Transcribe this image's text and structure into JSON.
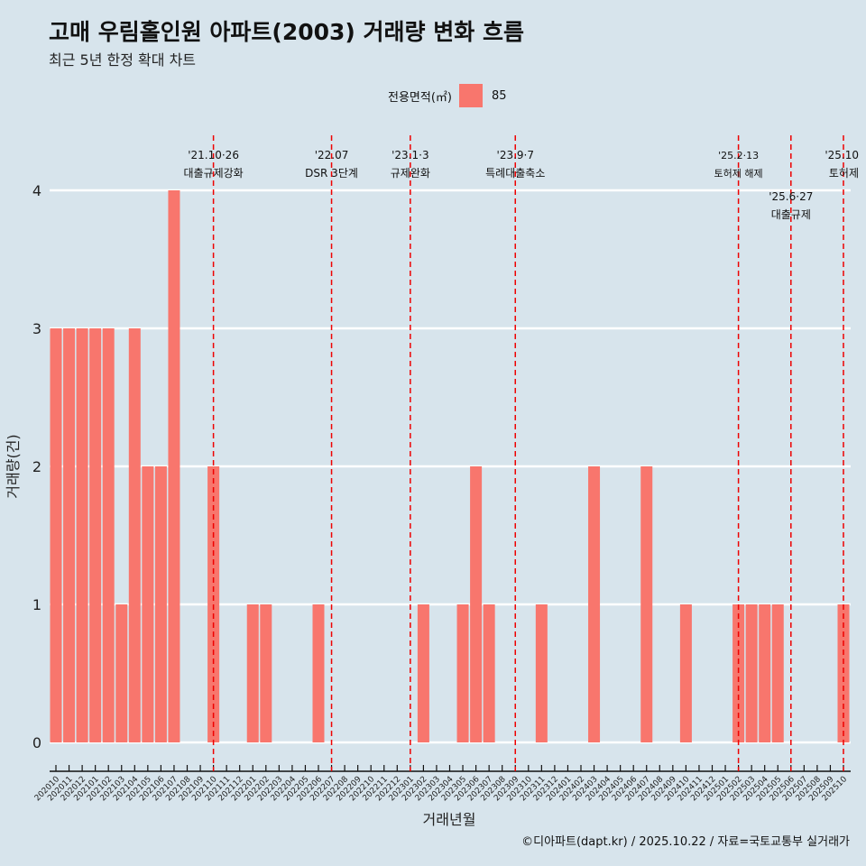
{
  "title": "고매 우림홀인원 아파트(2003) 거래량 변화 흐름",
  "subtitle": "최근 5년 한정 확대 차트",
  "legend": {
    "title": "전용면적(㎡)",
    "items": [
      {
        "label": "85",
        "color": "#F8766D"
      }
    ]
  },
  "caption": "©디아파트(dapt.kr) / 2025.10.22 / 자료=국토교통부 실거래가",
  "chart_data": {
    "type": "bar",
    "xlabel": "거래년월",
    "ylabel": "거래량(건)",
    "ylim": [
      0,
      4
    ],
    "yticks": [
      0,
      1,
      2,
      3,
      4
    ],
    "categories": [
      "202010",
      "202011",
      "202012",
      "202101",
      "202102",
      "202103",
      "202104",
      "202105",
      "202106",
      "202107",
      "202108",
      "202109",
      "202110",
      "202111",
      "202112",
      "202201",
      "202202",
      "202203",
      "202204",
      "202205",
      "202206",
      "202207",
      "202208",
      "202209",
      "202210",
      "202211",
      "202212",
      "202301",
      "202302",
      "202303",
      "202304",
      "202305",
      "202306",
      "202307",
      "202308",
      "202309",
      "202310",
      "202311",
      "202312",
      "202401",
      "202402",
      "202403",
      "202404",
      "202405",
      "202406",
      "202407",
      "202408",
      "202409",
      "202410",
      "202411",
      "202412",
      "202501",
      "202502",
      "202503",
      "202504",
      "202505",
      "202506",
      "202507",
      "202508",
      "202509",
      "202510"
    ],
    "series": [
      {
        "name": "85",
        "color": "#F8766D",
        "values": [
          3,
          3,
          3,
          3,
          3,
          1,
          3,
          2,
          2,
          4,
          0,
          0,
          2,
          0,
          0,
          1,
          1,
          0,
          0,
          0,
          1,
          0,
          0,
          0,
          0,
          0,
          0,
          0,
          1,
          0,
          0,
          1,
          2,
          1,
          0,
          0,
          0,
          1,
          0,
          0,
          0,
          2,
          0,
          0,
          0,
          2,
          0,
          0,
          1,
          0,
          0,
          0,
          1,
          1,
          1,
          1,
          0,
          0,
          0,
          0,
          1
        ]
      }
    ],
    "annotations": [
      {
        "month": "202110",
        "date": "'21.10·26",
        "label": "대출규제강화"
      },
      {
        "month": "202207",
        "date": "'22.07",
        "label": "DSR 3단계"
      },
      {
        "month": "202301",
        "date": "'23.1·3",
        "label": "규제완화"
      },
      {
        "month": "202309",
        "date": "'23.9·7",
        "label": "특례대출축소"
      },
      {
        "month": "202502",
        "date": "'25.2·13",
        "label": "토허제 해제"
      },
      {
        "month": "202506",
        "date": "'25.6·27",
        "label": "대출규제"
      },
      {
        "month": "202510",
        "date": "'25.10",
        "label": "토허제"
      }
    ]
  }
}
